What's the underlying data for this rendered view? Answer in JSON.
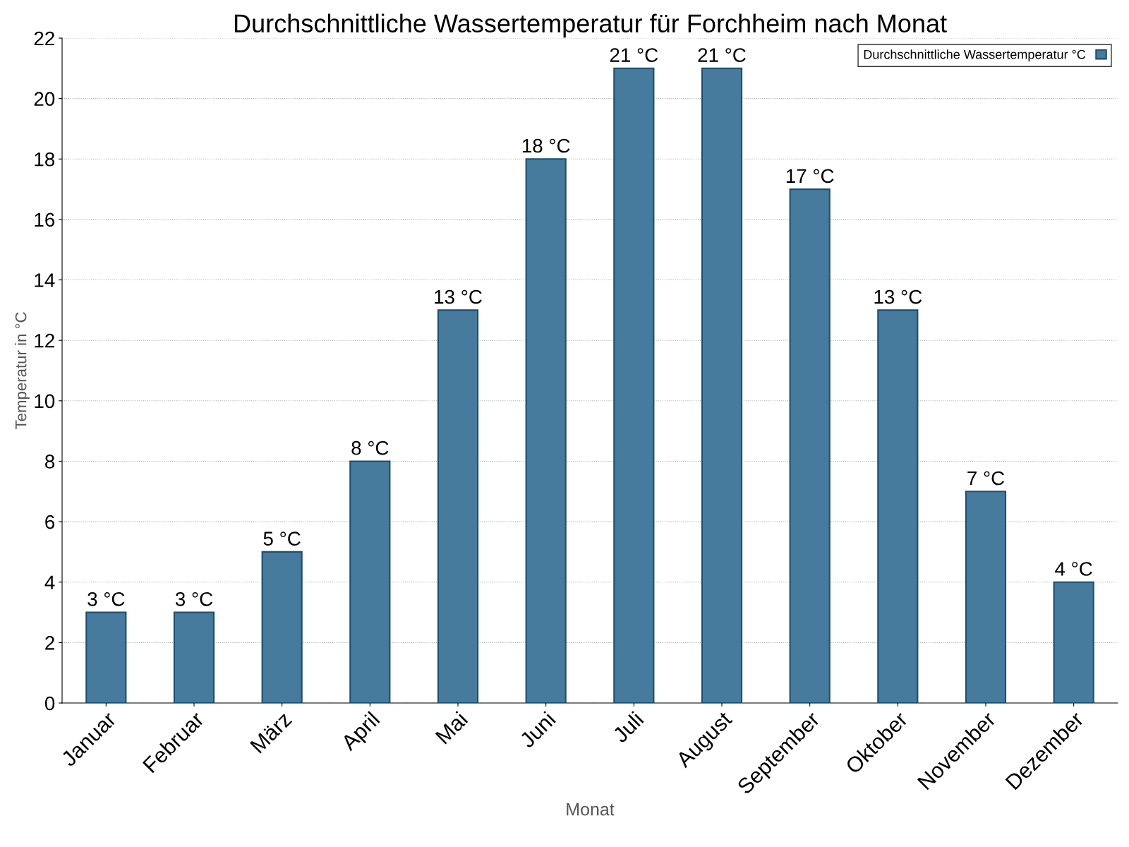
{
  "chart_data": {
    "type": "bar",
    "title": "Durchschnittliche Wassertemperatur für Forchheim nach Monat",
    "xlabel": "Monat",
    "ylabel": "Temperatur in °C",
    "categories": [
      "Januar",
      "Februar",
      "März",
      "April",
      "Mai",
      "Juni",
      "Juli",
      "August",
      "September",
      "Oktober",
      "November",
      "Dezember"
    ],
    "series": [
      {
        "name": "Durchschnittliche Wassertemperatur °C",
        "color": "#467b9e",
        "values": [
          3,
          3,
          5,
          8,
          13,
          18,
          21,
          21,
          17,
          13,
          7,
          4
        ],
        "value_labels": [
          "3 °C",
          "3 °C",
          "5 °C",
          "8 °C",
          "13 °C",
          "18 °C",
          "21 °C",
          "21 °C",
          "17 °C",
          "13 °C",
          "7 °C",
          "4 °C"
        ]
      }
    ],
    "ylim": [
      0,
      22
    ],
    "yticks": [
      0,
      2,
      4,
      6,
      8,
      10,
      12,
      14,
      16,
      18,
      20,
      22
    ],
    "grid": "y",
    "legend": "top right"
  }
}
